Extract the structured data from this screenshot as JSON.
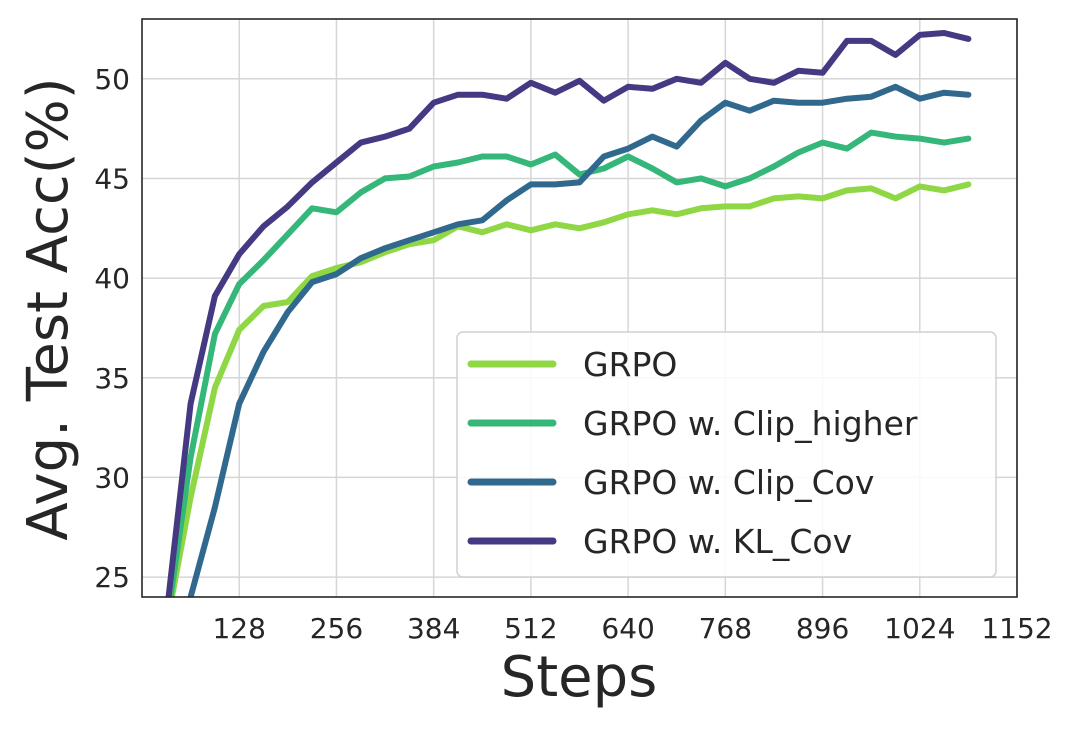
{
  "chart_data": {
    "type": "line",
    "title": "",
    "xlabel": "Steps",
    "ylabel": "Avg. Test Acc(%)",
    "xlim": [
      0,
      1152
    ],
    "ylim": [
      24,
      53
    ],
    "xticks": [
      128,
      256,
      384,
      512,
      640,
      768,
      896,
      1024,
      1152
    ],
    "yticks": [
      25,
      30,
      35,
      40,
      45,
      50
    ],
    "grid": true,
    "legend_position": "lower-right",
    "x": [
      32,
      64,
      96,
      128,
      160,
      192,
      224,
      256,
      288,
      320,
      352,
      384,
      416,
      448,
      480,
      512,
      544,
      576,
      608,
      640,
      672,
      704,
      736,
      768,
      800,
      832,
      864,
      896,
      928,
      960,
      992,
      1024,
      1056,
      1088
    ],
    "series": [
      {
        "name": "GRPO",
        "color": "#8fd744",
        "values": [
          22.5,
          29.0,
          34.5,
          37.4,
          38.6,
          38.8,
          40.1,
          40.5,
          40.8,
          41.3,
          41.7,
          41.9,
          42.6,
          42.3,
          42.7,
          42.4,
          42.7,
          42.5,
          42.8,
          43.2,
          43.4,
          43.2,
          43.5,
          43.6,
          43.6,
          44.0,
          44.1,
          44.0,
          44.4,
          44.5,
          44.0,
          44.6,
          44.4,
          44.7
        ]
      },
      {
        "name": "GRPO w. Clip_higher",
        "color": "#35b779",
        "values": [
          22.5,
          31.0,
          37.2,
          39.7,
          40.9,
          42.2,
          43.5,
          43.3,
          44.3,
          45.0,
          45.1,
          45.6,
          45.8,
          46.1,
          46.1,
          45.7,
          46.2,
          45.2,
          45.5,
          46.1,
          45.5,
          44.8,
          45.0,
          44.6,
          45.0,
          45.6,
          46.3,
          46.8,
          46.5,
          47.3,
          47.1,
          47.0,
          46.8,
          47.0
        ]
      },
      {
        "name": "GRPO w. Clip_Cov",
        "color": "#31688e",
        "values": [
          20.0,
          24.0,
          28.5,
          33.7,
          36.3,
          38.3,
          39.8,
          40.2,
          41.0,
          41.5,
          41.9,
          42.3,
          42.7,
          42.9,
          43.9,
          44.7,
          44.7,
          44.8,
          46.1,
          46.5,
          47.1,
          46.6,
          47.9,
          48.8,
          48.4,
          48.9,
          48.8,
          48.8,
          49.0,
          49.1,
          49.6,
          49.0,
          49.3,
          49.2
        ]
      },
      {
        "name": "GRPO w. KL_Cov",
        "color": "#443983",
        "values": [
          23.0,
          33.7,
          39.1,
          41.2,
          42.6,
          43.6,
          44.8,
          45.8,
          46.8,
          47.1,
          47.5,
          48.8,
          49.2,
          49.2,
          49.0,
          49.8,
          49.3,
          49.9,
          48.9,
          49.6,
          49.5,
          50.0,
          49.8,
          50.8,
          50.0,
          49.8,
          50.4,
          50.3,
          51.9,
          51.9,
          51.2,
          52.2,
          52.3,
          52.0
        ]
      }
    ]
  }
}
